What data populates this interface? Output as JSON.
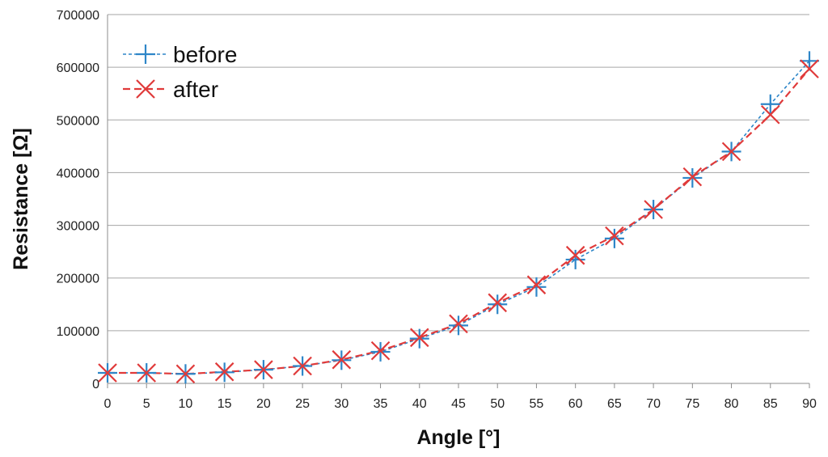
{
  "chart_data": {
    "type": "line",
    "xlabel": "Angle [°]",
    "ylabel": "Resistance [Ω]",
    "xlim": [
      0,
      90
    ],
    "ylim": [
      0,
      700000
    ],
    "x_ticks": [
      "0",
      "5",
      "10",
      "15",
      "20",
      "25",
      "30",
      "35",
      "40",
      "45",
      "50",
      "55",
      "60",
      "65",
      "70",
      "75",
      "80",
      "85",
      "90"
    ],
    "y_ticks": [
      "0",
      "100000",
      "200000",
      "300000",
      "400000",
      "500000",
      "600000",
      "700000"
    ],
    "grid": "horizontal",
    "legend_position": "top-left",
    "x": [
      0,
      5,
      10,
      15,
      20,
      25,
      30,
      35,
      40,
      45,
      50,
      55,
      60,
      65,
      70,
      75,
      80,
      85,
      90
    ],
    "series": [
      {
        "name": "before",
        "color": "#2E86C8",
        "marker": "plus",
        "line_style": "dotted",
        "values": [
          20000,
          20000,
          18000,
          21000,
          26000,
          33000,
          44000,
          60000,
          85000,
          110000,
          150000,
          183000,
          235000,
          275000,
          330000,
          390000,
          440000,
          530000,
          612000
        ]
      },
      {
        "name": "after",
        "color": "#E03A3A",
        "marker": "cross",
        "line_style": "dashed",
        "values": [
          20000,
          20000,
          18000,
          22000,
          26000,
          33000,
          45000,
          62000,
          87000,
          113000,
          153000,
          187000,
          243000,
          280000,
          330000,
          392000,
          440000,
          510000,
          597000
        ]
      }
    ]
  }
}
